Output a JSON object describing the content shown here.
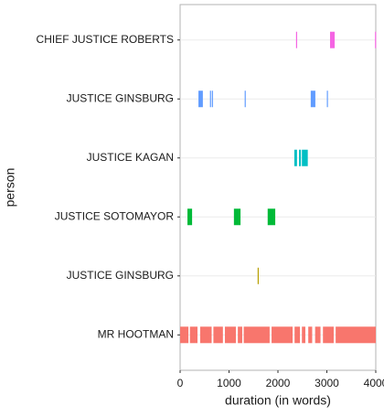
{
  "chart_data": {
    "type": "timeline",
    "x_label": "duration (in words)",
    "y_label": "person",
    "categories": [
      "CHIEF JUSTICE ROBERTS",
      "JUSTICE GINSBURG",
      "JUSTICE KAGAN",
      "JUSTICE SOTOMAYOR",
      "JUSTICE GINSBURG",
      "MR HOOTMAN"
    ],
    "colors": [
      "#F564E3",
      "#619CFF",
      "#00BFC4",
      "#00BA38",
      "#B79F00",
      "#F8766D"
    ],
    "segments": [
      [
        [
          2370,
          2385
        ],
        [
          3065,
          3160
        ],
        [
          3985,
          4000
        ]
      ],
      [
        [
          375,
          465
        ],
        [
          610,
          625
        ],
        [
          650,
          665
        ],
        [
          1320,
          1335
        ],
        [
          2670,
          2765
        ],
        [
          3000,
          3015
        ]
      ],
      [
        [
          2335,
          2390
        ],
        [
          2430,
          2470
        ],
        [
          2490,
          2610
        ]
      ],
      [
        [
          150,
          245
        ],
        [
          1100,
          1235
        ],
        [
          1790,
          1945
        ]
      ],
      [
        [
          1585,
          1600
        ]
      ],
      [
        [
          0,
          170
        ],
        [
          200,
          355
        ],
        [
          410,
          645
        ],
        [
          680,
          875
        ],
        [
          915,
          1140
        ],
        [
          1180,
          1270
        ],
        [
          1300,
          1830
        ],
        [
          1870,
          2300
        ],
        [
          2340,
          2450
        ],
        [
          2490,
          2560
        ],
        [
          2620,
          2700
        ],
        [
          2760,
          2870
        ],
        [
          2920,
          3140
        ],
        [
          3180,
          4000
        ]
      ]
    ],
    "xlim": [
      0,
      4000
    ],
    "xticks": [
      0,
      1000,
      2000,
      3000,
      4000
    ],
    "grid": true
  }
}
